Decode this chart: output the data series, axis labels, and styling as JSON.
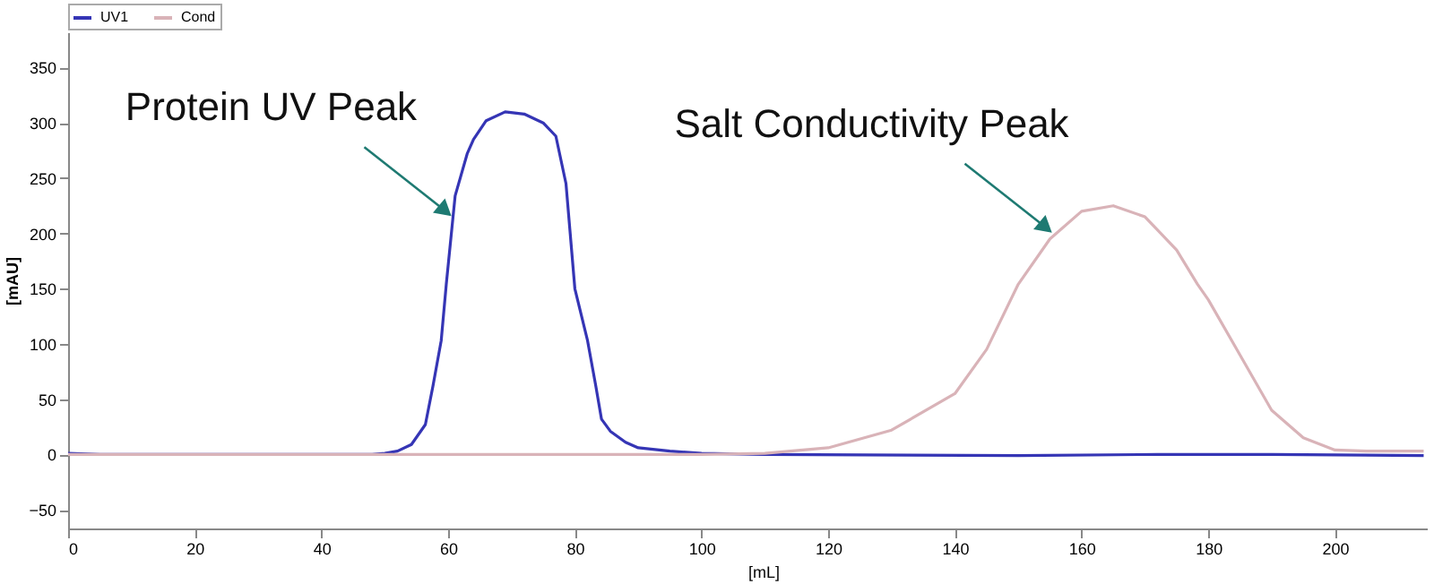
{
  "chart_data": {
    "type": "line",
    "xlabel": "[mL]",
    "ylabel": "[mAU]",
    "xlim": [
      0,
      214.5
    ],
    "ylim": [
      -67,
      382
    ],
    "xticks": [
      0,
      20,
      40,
      60,
      80,
      100,
      120,
      140,
      160,
      180,
      200
    ],
    "yticks": [
      -50,
      0,
      50,
      100,
      150,
      200,
      250,
      300,
      350
    ],
    "grid": false,
    "legend": "top left",
    "marker": "none",
    "line_style": "solid",
    "series": [
      {
        "name": "UV1",
        "color": "#3535b5",
        "x": [
          0,
          5,
          48,
          50,
          52,
          54.2,
          56.4,
          57.6,
          58.9,
          59.7,
          61.1,
          63,
          64,
          66,
          69,
          72,
          75,
          77,
          78.6,
          80,
          82,
          83.3,
          84.2,
          85.6,
          88,
          90,
          95,
          100,
          110,
          150,
          172,
          190,
          214
        ],
        "values": [
          1,
          0,
          0,
          1,
          3,
          9,
          27,
          62,
          103,
          154,
          234,
          272,
          285,
          302,
          310,
          308,
          300,
          288,
          245,
          150,
          103,
          62,
          32,
          21,
          11,
          6,
          3,
          1,
          0,
          -1,
          0,
          0,
          -1
        ]
      },
      {
        "name": "Cond",
        "color": "#d9b3b8",
        "x": [
          0,
          50,
          100,
          110,
          120,
          130,
          140,
          145,
          150,
          155,
          160,
          165,
          170,
          175,
          178.3,
          180,
          185,
          190,
          195,
          200,
          205,
          214
        ],
        "values": [
          0,
          0,
          0,
          1,
          6,
          22,
          55,
          95,
          154,
          195,
          220,
          225,
          215,
          185,
          154,
          140,
          90,
          40,
          15,
          4,
          3,
          3
        ]
      }
    ],
    "annotations": [
      {
        "text": "Protein UV Peak",
        "x": 59.2,
        "y": 222
      },
      {
        "text": "Salt Conductivity Peak",
        "x": 154,
        "y": 207
      }
    ]
  }
}
